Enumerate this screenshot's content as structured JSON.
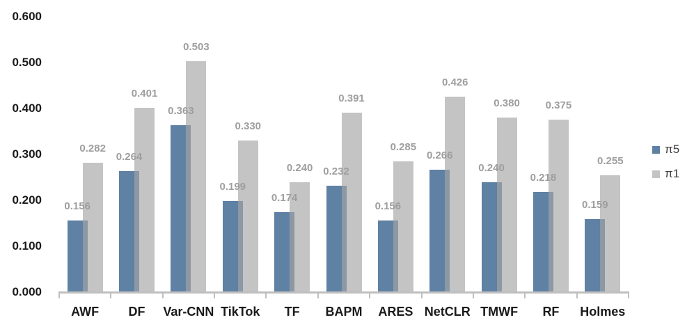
{
  "chart_data": {
    "type": "bar",
    "categories": [
      "AWF",
      "DF",
      "Var-CNN",
      "TikTok",
      "TF",
      "BAPM",
      "ARES",
      "NetCLR",
      "TMWF",
      "RF",
      "Holmes"
    ],
    "series": [
      {
        "name": "π5",
        "color": "#5E81A4",
        "values": [
          0.156,
          0.264,
          0.363,
          0.199,
          0.174,
          0.232,
          0.156,
          0.266,
          0.24,
          0.218,
          0.159
        ]
      },
      {
        "name": "π1",
        "color": "#C4C4C4",
        "fill": "rgba(165,165,165,0.65)",
        "values": [
          0.282,
          0.401,
          0.503,
          0.33,
          0.24,
          0.391,
          0.285,
          0.426,
          0.38,
          0.375,
          0.255
        ]
      }
    ],
    "y_axis": {
      "min": 0.0,
      "max": 0.6,
      "step": 0.1,
      "tick_labels": [
        "0.000",
        "0.100",
        "0.200",
        "0.300",
        "0.400",
        "0.500",
        "0.600"
      ]
    },
    "data_labels": true,
    "data_label_decimals": 3,
    "grid": false,
    "legend_position": "right",
    "legend": [
      {
        "label": "π5",
        "color": "#5E81A4"
      },
      {
        "label": "π1",
        "color": "#C4C4C4"
      }
    ],
    "colors": {
      "data_label": "#9E9E9E",
      "axis_text": "#1A1A1A",
      "axis_line": "#BFBFBF",
      "legend_text": "#404040",
      "background": "#FFFFFF"
    }
  }
}
